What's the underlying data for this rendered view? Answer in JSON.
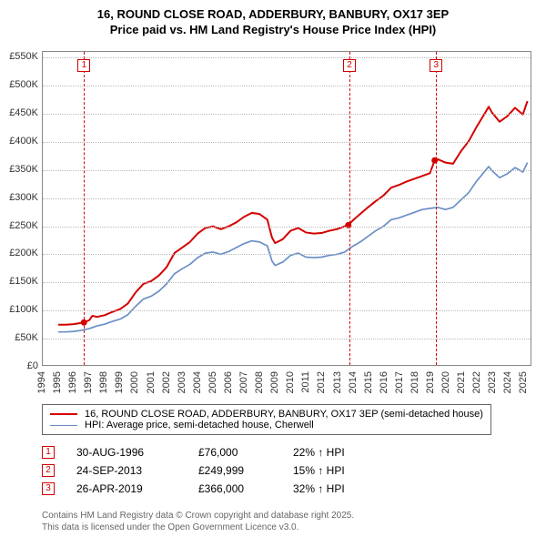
{
  "title_line1": "16, ROUND CLOSE ROAD, ADDERBURY, BANBURY, OX17 3EP",
  "title_line2": "Price paid vs. HM Land Registry's House Price Index (HPI)",
  "chart": {
    "type": "line",
    "background_color": "#ffffff",
    "border_color": "#888888",
    "grid_color": "#bbbbbb",
    "axis_font_size": 11,
    "x_min": 1994,
    "x_max": 2025.5,
    "x_ticks": [
      1994,
      1995,
      1996,
      1997,
      1998,
      1999,
      2000,
      2001,
      2002,
      2003,
      2004,
      2005,
      2006,
      2007,
      2008,
      2009,
      2010,
      2011,
      2012,
      2013,
      2014,
      2015,
      2016,
      2017,
      2018,
      2019,
      2020,
      2021,
      2022,
      2023,
      2024,
      2025
    ],
    "y_min": 0,
    "y_max": 560000,
    "y_ticks": [
      {
        "v": 0,
        "label": "£0"
      },
      {
        "v": 50000,
        "label": "£50K"
      },
      {
        "v": 100000,
        "label": "£100K"
      },
      {
        "v": 150000,
        "label": "£150K"
      },
      {
        "v": 200000,
        "label": "£200K"
      },
      {
        "v": 250000,
        "label": "£250K"
      },
      {
        "v": 300000,
        "label": "£300K"
      },
      {
        "v": 350000,
        "label": "£350K"
      },
      {
        "v": 400000,
        "label": "£400K"
      },
      {
        "v": 450000,
        "label": "£450K"
      },
      {
        "v": 500000,
        "label": "£500K"
      },
      {
        "v": 550000,
        "label": "£550K"
      }
    ],
    "series": [
      {
        "name": "price_paid",
        "label": "16, ROUND CLOSE ROAD, ADDERBURY, BANBURY, OX17 3EP (semi-detached house)",
        "color": "#d40000",
        "line_width": 2,
        "points": [
          [
            1995.0,
            72000
          ],
          [
            1995.5,
            72000
          ],
          [
            1996.0,
            73000
          ],
          [
            1996.66,
            76000
          ],
          [
            1997.0,
            80000
          ],
          [
            1997.2,
            88000
          ],
          [
            1997.5,
            86000
          ],
          [
            1998.0,
            89000
          ],
          [
            1998.5,
            95000
          ],
          [
            1999.0,
            100000
          ],
          [
            1999.5,
            110000
          ],
          [
            2000.0,
            130000
          ],
          [
            2000.5,
            145000
          ],
          [
            2001.0,
            150000
          ],
          [
            2001.5,
            160000
          ],
          [
            2002.0,
            175000
          ],
          [
            2002.5,
            200000
          ],
          [
            2003.0,
            210000
          ],
          [
            2003.5,
            220000
          ],
          [
            2004.0,
            235000
          ],
          [
            2004.5,
            245000
          ],
          [
            2005.0,
            248000
          ],
          [
            2005.5,
            243000
          ],
          [
            2006.0,
            248000
          ],
          [
            2006.5,
            255000
          ],
          [
            2007.0,
            265000
          ],
          [
            2007.5,
            272000
          ],
          [
            2008.0,
            270000
          ],
          [
            2008.5,
            260000
          ],
          [
            2008.8,
            228000
          ],
          [
            2009.0,
            218000
          ],
          [
            2009.5,
            225000
          ],
          [
            2010.0,
            240000
          ],
          [
            2010.5,
            245000
          ],
          [
            2011.0,
            237000
          ],
          [
            2011.5,
            235000
          ],
          [
            2012.0,
            236000
          ],
          [
            2012.5,
            240000
          ],
          [
            2013.0,
            243000
          ],
          [
            2013.5,
            248000
          ],
          [
            2013.73,
            249999
          ],
          [
            2014.0,
            258000
          ],
          [
            2014.5,
            270000
          ],
          [
            2015.0,
            282000
          ],
          [
            2015.5,
            293000
          ],
          [
            2016.0,
            303000
          ],
          [
            2016.5,
            317000
          ],
          [
            2017.0,
            322000
          ],
          [
            2017.5,
            328000
          ],
          [
            2018.0,
            333000
          ],
          [
            2018.5,
            338000
          ],
          [
            2019.0,
            343000
          ],
          [
            2019.31,
            366000
          ],
          [
            2019.5,
            368000
          ],
          [
            2020.0,
            362000
          ],
          [
            2020.5,
            360000
          ],
          [
            2021.0,
            382000
          ],
          [
            2021.5,
            400000
          ],
          [
            2022.0,
            425000
          ],
          [
            2022.5,
            448000
          ],
          [
            2022.8,
            462000
          ],
          [
            2023.0,
            452000
          ],
          [
            2023.5,
            435000
          ],
          [
            2024.0,
            445000
          ],
          [
            2024.5,
            460000
          ],
          [
            2025.0,
            448000
          ],
          [
            2025.3,
            472000
          ]
        ],
        "sale_markers": [
          {
            "x": 1996.66,
            "y": 76000
          },
          {
            "x": 2013.73,
            "y": 249999
          },
          {
            "x": 2019.31,
            "y": 366000
          }
        ]
      },
      {
        "name": "hpi",
        "label": "HPI: Average price, semi-detached house, Cherwell",
        "color": "#6a8fc5",
        "line_width": 1.7,
        "points": [
          [
            1995.0,
            59000
          ],
          [
            1995.5,
            59000
          ],
          [
            1996.0,
            60000
          ],
          [
            1996.5,
            62000
          ],
          [
            1997.0,
            65000
          ],
          [
            1997.5,
            70000
          ],
          [
            1998.0,
            73000
          ],
          [
            1998.5,
            78000
          ],
          [
            1999.0,
            82000
          ],
          [
            1999.5,
            90000
          ],
          [
            2000.0,
            105000
          ],
          [
            2000.5,
            118000
          ],
          [
            2001.0,
            123000
          ],
          [
            2001.5,
            132000
          ],
          [
            2002.0,
            145000
          ],
          [
            2002.5,
            163000
          ],
          [
            2003.0,
            172000
          ],
          [
            2003.5,
            180000
          ],
          [
            2004.0,
            192000
          ],
          [
            2004.5,
            200000
          ],
          [
            2005.0,
            202000
          ],
          [
            2005.5,
            198000
          ],
          [
            2006.0,
            203000
          ],
          [
            2006.5,
            210000
          ],
          [
            2007.0,
            217000
          ],
          [
            2007.5,
            222000
          ],
          [
            2008.0,
            220000
          ],
          [
            2008.5,
            213000
          ],
          [
            2008.8,
            186000
          ],
          [
            2009.0,
            178000
          ],
          [
            2009.5,
            184000
          ],
          [
            2010.0,
            196000
          ],
          [
            2010.5,
            200000
          ],
          [
            2011.0,
            193000
          ],
          [
            2011.5,
            192000
          ],
          [
            2012.0,
            193000
          ],
          [
            2012.5,
            196000
          ],
          [
            2013.0,
            198000
          ],
          [
            2013.5,
            202000
          ],
          [
            2014.0,
            212000
          ],
          [
            2014.5,
            220000
          ],
          [
            2015.0,
            230000
          ],
          [
            2015.5,
            240000
          ],
          [
            2016.0,
            248000
          ],
          [
            2016.5,
            260000
          ],
          [
            2017.0,
            263000
          ],
          [
            2017.5,
            268000
          ],
          [
            2018.0,
            273000
          ],
          [
            2018.5,
            278000
          ],
          [
            2019.0,
            280000
          ],
          [
            2019.5,
            282000
          ],
          [
            2020.0,
            278000
          ],
          [
            2020.5,
            282000
          ],
          [
            2021.0,
            295000
          ],
          [
            2021.5,
            308000
          ],
          [
            2022.0,
            328000
          ],
          [
            2022.5,
            345000
          ],
          [
            2022.8,
            355000
          ],
          [
            2023.0,
            348000
          ],
          [
            2023.5,
            335000
          ],
          [
            2024.0,
            342000
          ],
          [
            2024.5,
            353000
          ],
          [
            2025.0,
            345000
          ],
          [
            2025.3,
            362000
          ]
        ]
      }
    ],
    "event_lines": [
      {
        "num": "1",
        "x": 1996.66,
        "color": "#d40000"
      },
      {
        "num": "2",
        "x": 2013.73,
        "color": "#d40000"
      },
      {
        "num": "3",
        "x": 2019.31,
        "color": "#d40000"
      }
    ]
  },
  "events": [
    {
      "num": "1",
      "color": "#d40000",
      "date": "30-AUG-1996",
      "price": "£76,000",
      "delta": "22% ↑ HPI"
    },
    {
      "num": "2",
      "color": "#d40000",
      "date": "24-SEP-2013",
      "price": "£249,999",
      "delta": "15% ↑ HPI"
    },
    {
      "num": "3",
      "color": "#d40000",
      "date": "26-APR-2019",
      "price": "£366,000",
      "delta": "32% ↑ HPI"
    }
  ],
  "footer_line1": "Contains HM Land Registry data © Crown copyright and database right 2025.",
  "footer_line2": "This data is licensed under the Open Government Licence v3.0."
}
